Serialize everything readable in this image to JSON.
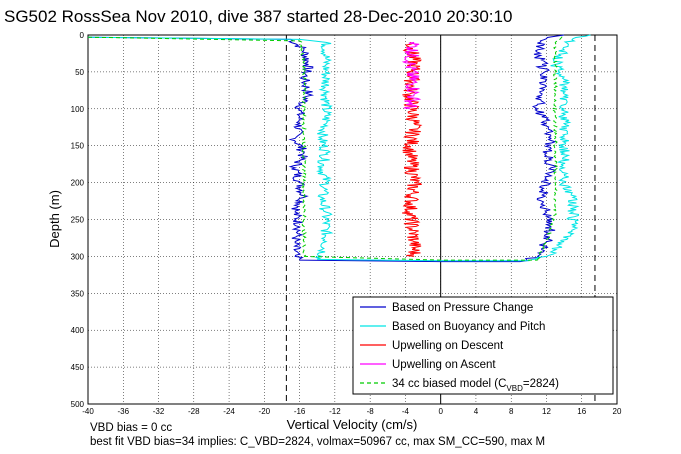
{
  "chart_data": {
    "type": "line",
    "title": "SG502 RossSea Nov 2010, dive 387 started 28-Dec-2010 20:30:10",
    "xlabel": "Vertical Velocity (cm/s)",
    "ylabel": "Depth (m)",
    "xlim": [
      -40,
      20
    ],
    "ylim": [
      0,
      500
    ],
    "y_reversed": true,
    "grid": "dotted",
    "x_ticks": [
      "-40",
      "-36",
      "-32",
      "-28",
      "-24",
      "-20",
      "-16",
      "-12",
      "-8",
      "-4",
      "0",
      "4",
      "8",
      "12",
      "16",
      "20"
    ],
    "y_ticks": [
      "0",
      "50",
      "100",
      "150",
      "200",
      "250",
      "300",
      "350",
      "400",
      "450",
      "500"
    ],
    "vertical_reference_lines": [
      {
        "x": -17.5,
        "style": "dashed"
      },
      {
        "x": 17.5,
        "style": "dashed"
      },
      {
        "x": 0,
        "style": "solid"
      }
    ],
    "legend_position": "bottom-right",
    "series": [
      {
        "name": "Based on Pressure Change",
        "color": "#0000cc",
        "style": "solid",
        "descent": [
          [
            -40,
            3
          ],
          [
            -17,
            6
          ],
          [
            -15.5,
            20
          ],
          [
            -15,
            40
          ],
          [
            -15.5,
            60
          ],
          [
            -15,
            80
          ],
          [
            -16,
            100
          ],
          [
            -16,
            120
          ],
          [
            -16.5,
            140
          ],
          [
            -15.5,
            160
          ],
          [
            -16.5,
            180
          ],
          [
            -16,
            200
          ],
          [
            -15.5,
            220
          ],
          [
            -16.5,
            240
          ],
          [
            -16,
            260
          ],
          [
            -16.5,
            280
          ],
          [
            -16.5,
            300
          ],
          [
            -16,
            305
          ]
        ],
        "bottom": [
          [
            -16,
            305
          ],
          [
            0,
            307
          ],
          [
            9,
            307
          ]
        ],
        "ascent": [
          [
            9,
            307
          ],
          [
            11,
            300
          ],
          [
            12,
            280
          ],
          [
            12.5,
            260
          ],
          [
            12,
            240
          ],
          [
            11.5,
            220
          ],
          [
            12,
            200
          ],
          [
            12.5,
            180
          ],
          [
            12,
            160
          ],
          [
            12.5,
            140
          ],
          [
            12,
            120
          ],
          [
            11,
            100
          ],
          [
            11.5,
            80
          ],
          [
            12,
            60
          ],
          [
            11.5,
            40
          ],
          [
            11,
            20
          ],
          [
            12,
            5
          ],
          [
            14,
            0
          ]
        ]
      },
      {
        "name": "Based on Buoyancy and Pitch",
        "color": "#00e5e5",
        "style": "solid",
        "descent": [
          [
            -40,
            3
          ],
          [
            -16,
            6
          ],
          [
            -13,
            10
          ],
          [
            -13,
            40
          ],
          [
            -13,
            80
          ],
          [
            -13,
            120
          ],
          [
            -13.5,
            140
          ],
          [
            -13,
            160
          ],
          [
            -13.5,
            180
          ],
          [
            -13,
            200
          ],
          [
            -13.5,
            220
          ],
          [
            -13,
            240
          ],
          [
            -13,
            280
          ],
          [
            -13.5,
            300
          ],
          [
            -14,
            304
          ]
        ],
        "bottom": [
          [
            -14,
            304
          ],
          [
            0,
            306
          ],
          [
            10,
            306
          ]
        ],
        "ascent": [
          [
            10,
            306
          ],
          [
            12,
            300
          ],
          [
            14,
            280
          ],
          [
            15,
            260
          ],
          [
            15,
            240
          ],
          [
            15,
            220
          ],
          [
            14,
            200
          ],
          [
            14,
            180
          ],
          [
            14,
            160
          ],
          [
            14,
            140
          ],
          [
            14,
            120
          ],
          [
            14,
            100
          ],
          [
            14,
            80
          ],
          [
            14,
            60
          ],
          [
            13,
            40
          ],
          [
            14,
            20
          ],
          [
            15,
            5
          ],
          [
            17,
            0
          ]
        ]
      },
      {
        "name": "Upwelling on Descent",
        "color": "#ff0000",
        "style": "solid",
        "points": [
          [
            -3.5,
            10
          ],
          [
            -3,
            40
          ],
          [
            -3.5,
            80
          ],
          [
            -3,
            120
          ],
          [
            -3.5,
            160
          ],
          [
            -3,
            200
          ],
          [
            -3.5,
            240
          ],
          [
            -3,
            280
          ],
          [
            -3,
            300
          ]
        ]
      },
      {
        "name": "Upwelling on Ascent",
        "color": "#ff00ff",
        "style": "solid",
        "points": [
          [
            -3,
            10
          ],
          [
            -3.5,
            40
          ],
          [
            -3,
            80
          ],
          [
            -3.5,
            100
          ]
        ]
      },
      {
        "name": "34 cc biased model (C_VBD=2824)",
        "color": "#00cc00",
        "style": "dashed",
        "descent": [
          [
            -40,
            3
          ],
          [
            -16,
            8
          ],
          [
            -15.5,
            40
          ],
          [
            -15.5,
            80
          ],
          [
            -15.5,
            120
          ],
          [
            -15.5,
            160
          ],
          [
            -15.5,
            200
          ],
          [
            -15.5,
            240
          ],
          [
            -15.5,
            280
          ],
          [
            -15.5,
            300
          ]
        ],
        "bottom": [
          [
            -15.5,
            300
          ],
          [
            0,
            305
          ],
          [
            11,
            305
          ]
        ],
        "ascent": [
          [
            11,
            305
          ],
          [
            12,
            280
          ],
          [
            13,
            240
          ],
          [
            13,
            200
          ],
          [
            13,
            160
          ],
          [
            13,
            120
          ],
          [
            13,
            80
          ],
          [
            13,
            40
          ],
          [
            13,
            10
          ],
          [
            14,
            0
          ]
        ]
      }
    ]
  },
  "legend": {
    "entries": [
      {
        "label": "Based on Pressure Change",
        "color": "#0000cc",
        "dash": false
      },
      {
        "label": "Based on Buoyancy and Pitch",
        "color": "#00e5e5",
        "dash": false
      },
      {
        "label": "Upwelling on Descent",
        "color": "#ff0000",
        "dash": false
      },
      {
        "label": "Upwelling on Ascent",
        "color": "#ff00ff",
        "dash": false
      },
      {
        "label_main": "34 cc biased model (C",
        "label_sub": "VBD",
        "label_end": "=2824)",
        "color": "#00cc00",
        "dash": true
      }
    ]
  },
  "footer": {
    "line1": "VBD bias = 0 cc",
    "line2": "best fit VBD bias=34 implies: C_VBD=2824, volmax=50967 cc, max SM_CC=590, max M"
  }
}
